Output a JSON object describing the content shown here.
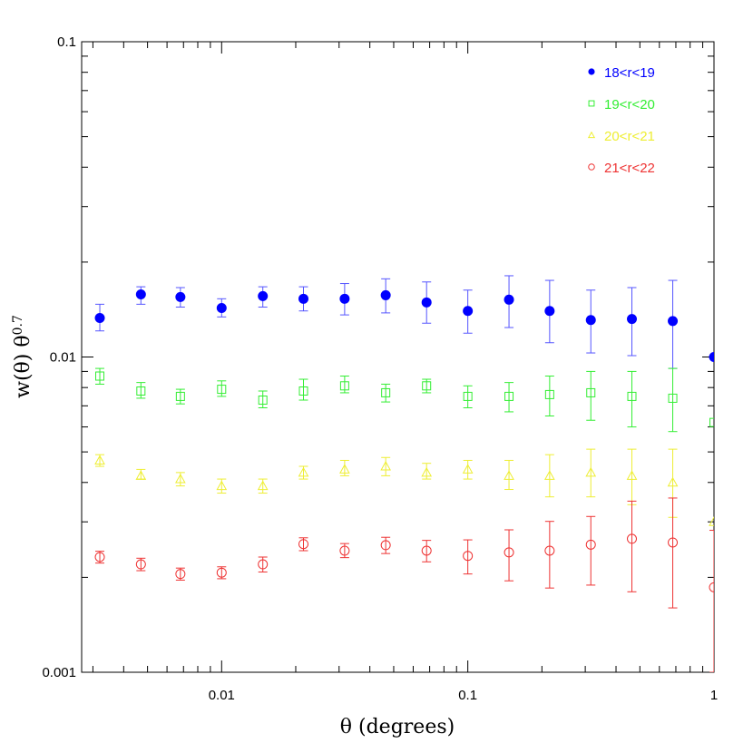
{
  "chart_data": {
    "type": "scatter",
    "xscale": "log",
    "yscale": "log",
    "xlim": [
      0.0027,
      1
    ],
    "ylim": [
      0.001,
      0.1
    ],
    "xlabel": "θ (degrees)",
    "ylabel": "w(θ) θ^0.7",
    "ylabel_parts": {
      "main": "w(θ)  θ",
      "sup": "0.7"
    },
    "xtick_labels": [
      {
        "value": 0.01,
        "label": "0.01"
      },
      {
        "value": 0.1,
        "label": "0.1"
      },
      {
        "value": 1,
        "label": "1"
      }
    ],
    "ytick_labels": [
      {
        "value": 0.001,
        "label": "0.001"
      },
      {
        "value": 0.01,
        "label": "0.01"
      },
      {
        "value": 0.1,
        "label": "0.1"
      }
    ],
    "legend_position": "top-right",
    "x": [
      0.0032,
      0.0047,
      0.0068,
      0.01,
      0.0147,
      0.0215,
      0.0316,
      0.0464,
      0.068,
      0.1,
      0.147,
      0.215,
      0.316,
      0.464,
      0.68,
      1.0
    ],
    "series": [
      {
        "name": "18<r<19",
        "marker": "filled-circle",
        "color": "#0000ff",
        "errcolor": "#5555ff",
        "values": [
          0.0133,
          0.0158,
          0.0155,
          0.0143,
          0.0156,
          0.0153,
          0.0153,
          0.0157,
          0.0149,
          0.014,
          0.0152,
          0.014,
          0.0131,
          0.0132,
          0.013,
          0.01
        ],
        "err_low": [
          0.0121,
          0.0147,
          0.0144,
          0.0134,
          0.0144,
          0.014,
          0.0136,
          0.0138,
          0.0128,
          0.0119,
          0.0124,
          0.0111,
          0.0103,
          0.0101,
          0.0092,
          null
        ],
        "err_high": [
          0.0147,
          0.0167,
          0.0166,
          0.0153,
          0.0167,
          0.0167,
          0.0171,
          0.0177,
          0.0173,
          0.0163,
          0.0181,
          0.0175,
          0.0163,
          0.0166,
          0.0175,
          null
        ]
      },
      {
        "name": "19<r<20",
        "marker": "open-square",
        "color": "#33ee33",
        "errcolor": "#33ee33",
        "values": [
          0.0087,
          0.0078,
          0.0075,
          0.0079,
          0.0073,
          0.0078,
          0.0081,
          0.0077,
          0.0081,
          0.0075,
          0.0075,
          0.0076,
          0.0077,
          0.0075,
          0.0074,
          0.0062
        ],
        "err_low": [
          0.0082,
          0.0074,
          0.0071,
          0.0075,
          0.0069,
          0.0073,
          0.0077,
          0.0072,
          0.0077,
          0.0069,
          0.0067,
          0.0065,
          0.0063,
          0.006,
          0.0058,
          null
        ],
        "err_high": [
          0.0092,
          0.0083,
          0.0079,
          0.0084,
          0.0078,
          0.0085,
          0.0087,
          0.0082,
          0.0085,
          0.0081,
          0.0083,
          0.0087,
          0.009,
          0.009,
          0.0092,
          null
        ]
      },
      {
        "name": "20<r<21",
        "marker": "open-triangle",
        "color": "#eeee33",
        "errcolor": "#eeee33",
        "values": [
          0.0047,
          0.0042,
          0.0041,
          0.0039,
          0.0039,
          0.0043,
          0.0044,
          0.0045,
          0.0043,
          0.0044,
          0.0042,
          0.0042,
          0.0043,
          0.0042,
          0.004,
          0.003
        ],
        "err_low": [
          0.0045,
          0.0041,
          0.0039,
          0.0037,
          0.0037,
          0.0041,
          0.0042,
          0.0042,
          0.0041,
          0.0041,
          0.0038,
          0.0036,
          0.0036,
          0.0034,
          0.0031,
          null
        ],
        "err_high": [
          0.0049,
          0.0044,
          0.0043,
          0.0041,
          0.0041,
          0.0045,
          0.0047,
          0.0048,
          0.0046,
          0.0047,
          0.0047,
          0.0049,
          0.0051,
          0.0051,
          0.0051,
          null
        ]
      },
      {
        "name": "21<r<22",
        "marker": "open-circle",
        "color": "#ee3333",
        "errcolor": "#ee3333",
        "values": [
          0.00232,
          0.0022,
          0.00205,
          0.00207,
          0.0022,
          0.00255,
          0.00243,
          0.00253,
          0.00243,
          0.00234,
          0.0024,
          0.00243,
          0.00254,
          0.00265,
          0.00258,
          0.00186
        ],
        "err_low": [
          0.00222,
          0.0021,
          0.00196,
          0.00198,
          0.00208,
          0.00243,
          0.00231,
          0.00238,
          0.00224,
          0.00205,
          0.00195,
          0.00185,
          0.00189,
          0.0018,
          0.0016,
          0.001
        ],
        "err_high": [
          0.00242,
          0.0023,
          0.00214,
          0.00216,
          0.00232,
          0.00267,
          0.00256,
          0.00268,
          0.00262,
          0.00263,
          0.00283,
          0.00301,
          0.00312,
          0.00349,
          0.00357,
          0.00282
        ]
      }
    ]
  }
}
